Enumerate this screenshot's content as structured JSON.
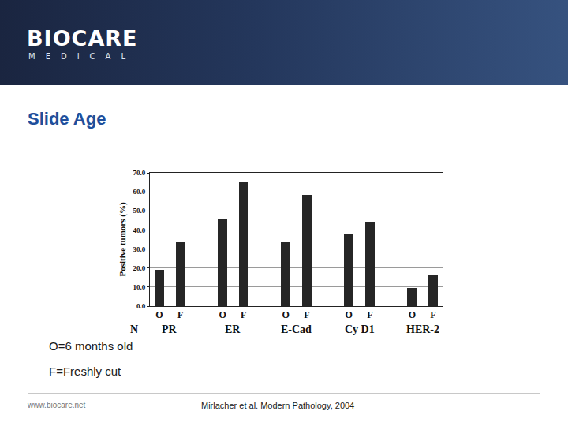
{
  "header": {
    "brand": "BIOCARE",
    "brand_sub": "MEDICAL"
  },
  "title": "Slide Age",
  "chart_data": {
    "type": "bar",
    "categories": [
      "O",
      "F",
      "O",
      "F",
      "O",
      "F",
      "O",
      "F",
      "O",
      "F"
    ],
    "groups": [
      "PR",
      "ER",
      "E-Cad",
      "Cy D1",
      "HER-2"
    ],
    "note": "N",
    "values": [
      19,
      33.5,
      45.5,
      65,
      33.5,
      58.5,
      38,
      44.5,
      9.5,
      16
    ],
    "color": "#262626",
    "y_label": "Positive tumors (%)",
    "ylim": [
      0,
      70
    ],
    "yticks": [
      {
        "value": 0,
        "label": "0.0"
      },
      {
        "value": 10,
        "label": "10.0"
      },
      {
        "value": 20,
        "label": "20.0"
      },
      {
        "value": 30,
        "label": "30.0"
      },
      {
        "value": 40,
        "label": "40.0"
      },
      {
        "value": 50,
        "label": "50.0"
      },
      {
        "value": 60,
        "label": "60.0"
      },
      {
        "value": 70,
        "label": "70.0"
      }
    ],
    "grid": true
  },
  "legend_notes": [
    "O=6 months old",
    "F=Freshly cut"
  ],
  "footer": {
    "url": "www.biocare.net",
    "citation": "Mirlacher et al. Modern Pathology, 2004"
  }
}
